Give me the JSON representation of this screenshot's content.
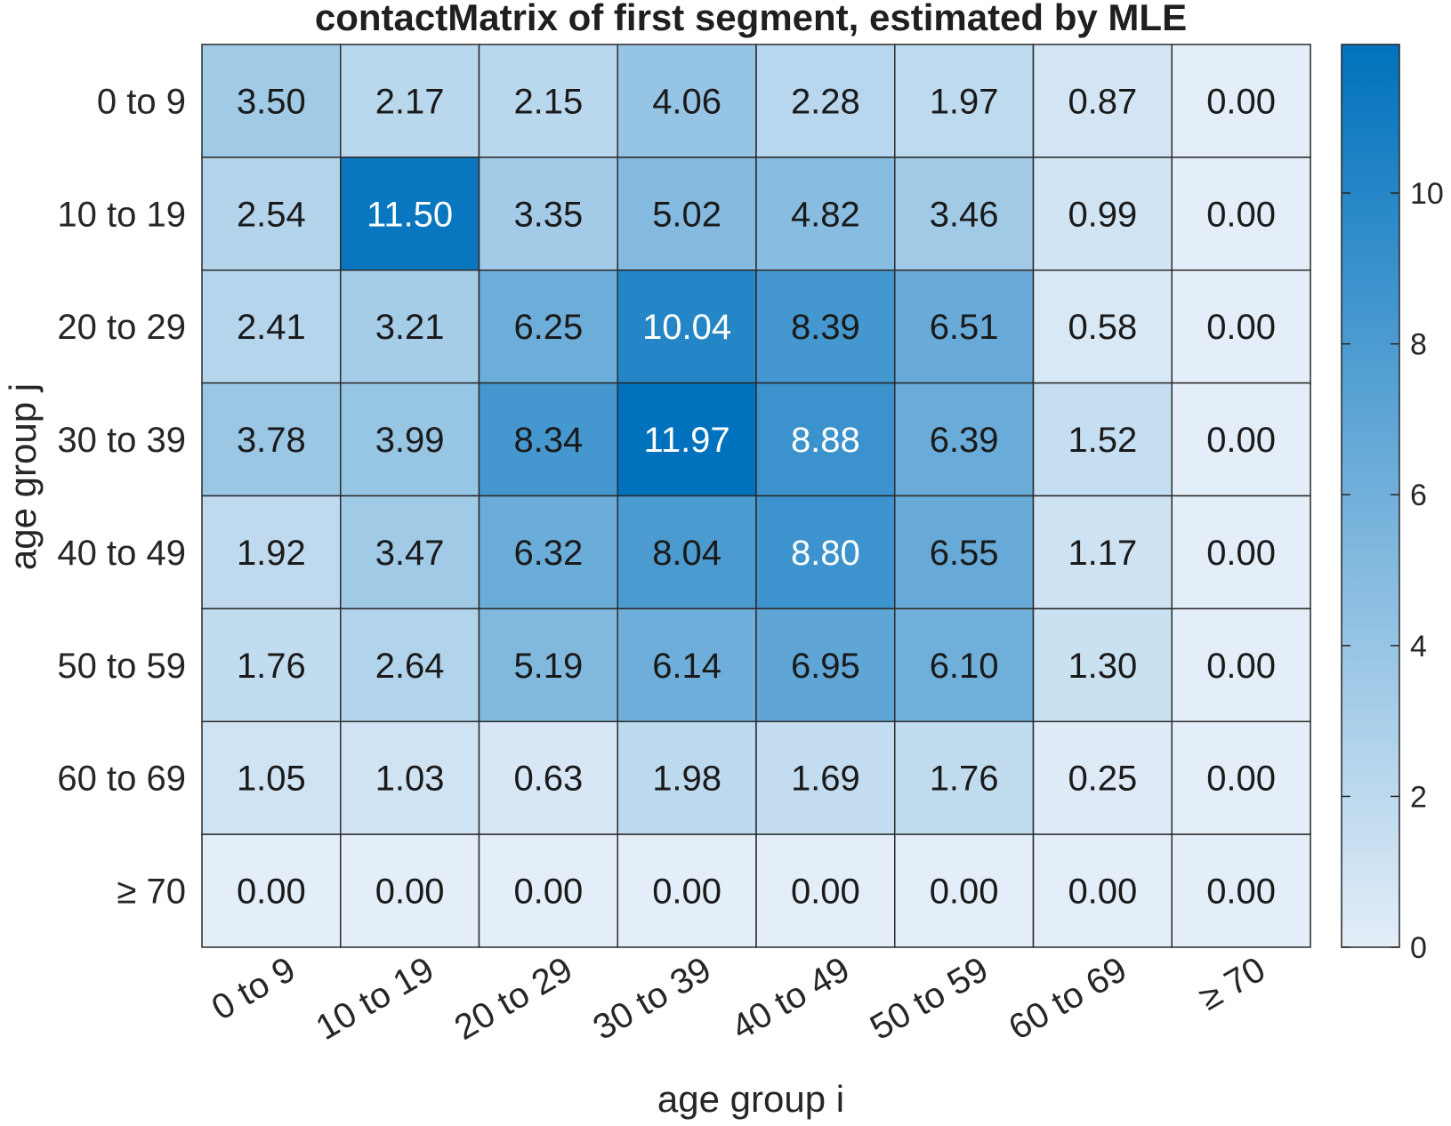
{
  "chart_data": {
    "type": "heatmap",
    "title": "contactMatrix of first segment, estimated by MLE",
    "xlabel": "age group i",
    "ylabel": "age group j",
    "x_categories": [
      "0 to 9",
      "10 to 19",
      "20 to 29",
      "30 to 39",
      "40 to 49",
      "50 to 59",
      "60 to 69",
      "≥ 70"
    ],
    "y_categories": [
      "0 to 9",
      "10 to 19",
      "20 to 29",
      "30 to 39",
      "40 to 49",
      "50 to 59",
      "60 to 69",
      "≥ 70"
    ],
    "values": [
      [
        3.5,
        2.17,
        2.15,
        4.06,
        2.28,
        1.97,
        0.87,
        0.0
      ],
      [
        2.54,
        11.5,
        3.35,
        5.02,
        4.82,
        3.46,
        0.99,
        0.0
      ],
      [
        2.41,
        3.21,
        6.25,
        10.04,
        8.39,
        6.51,
        0.58,
        0.0
      ],
      [
        3.78,
        3.99,
        8.34,
        11.97,
        8.88,
        6.39,
        1.52,
        0.0
      ],
      [
        1.92,
        3.47,
        6.32,
        8.04,
        8.8,
        6.55,
        1.17,
        0.0
      ],
      [
        1.76,
        2.64,
        5.19,
        6.14,
        6.95,
        6.1,
        1.3,
        0.0
      ],
      [
        1.05,
        1.03,
        0.63,
        1.98,
        1.69,
        1.76,
        0.25,
        0.0
      ],
      [
        0.0,
        0.0,
        0.0,
        0.0,
        0.0,
        0.0,
        0.0,
        0.0
      ]
    ],
    "cell_labels": [
      [
        "3.50",
        "2.17",
        "2.15",
        "4.06",
        "2.28",
        "1.97",
        "0.87",
        "0.00"
      ],
      [
        "2.54",
        "11.50",
        "3.35",
        "5.02",
        "4.82",
        "3.46",
        "0.99",
        "0.00"
      ],
      [
        "2.41",
        "3.21",
        "6.25",
        "10.04",
        "8.39",
        "6.51",
        "0.58",
        "0.00"
      ],
      [
        "3.78",
        "3.99",
        "8.34",
        "11.97",
        "8.88",
        "6.39",
        "1.52",
        "0.00"
      ],
      [
        "1.92",
        "3.47",
        "6.32",
        "8.04",
        "8.80",
        "6.55",
        "1.17",
        "0.00"
      ],
      [
        "1.76",
        "2.64",
        "5.19",
        "6.14",
        "6.95",
        "6.10",
        "1.30",
        "0.00"
      ],
      [
        "1.05",
        "1.03",
        "0.63",
        "1.98",
        "1.69",
        "1.76",
        "0.25",
        "0.00"
      ],
      [
        "0.00",
        "0.00",
        "0.00",
        "0.00",
        "0.00",
        "0.00",
        "0.00",
        "0.00"
      ]
    ],
    "colorbar": {
      "range": [
        0,
        11.97
      ],
      "ticks": [
        0,
        2,
        4,
        6,
        8,
        10
      ],
      "tick_labels": [
        "0",
        "2",
        "4",
        "6",
        "8",
        "10"
      ],
      "color_low": "#e3eef8",
      "color_high": "#0072bd"
    },
    "label_colors": {
      "dark": "#1a1a1a",
      "light": "#ffffff"
    },
    "light_label_threshold": 8.5
  }
}
